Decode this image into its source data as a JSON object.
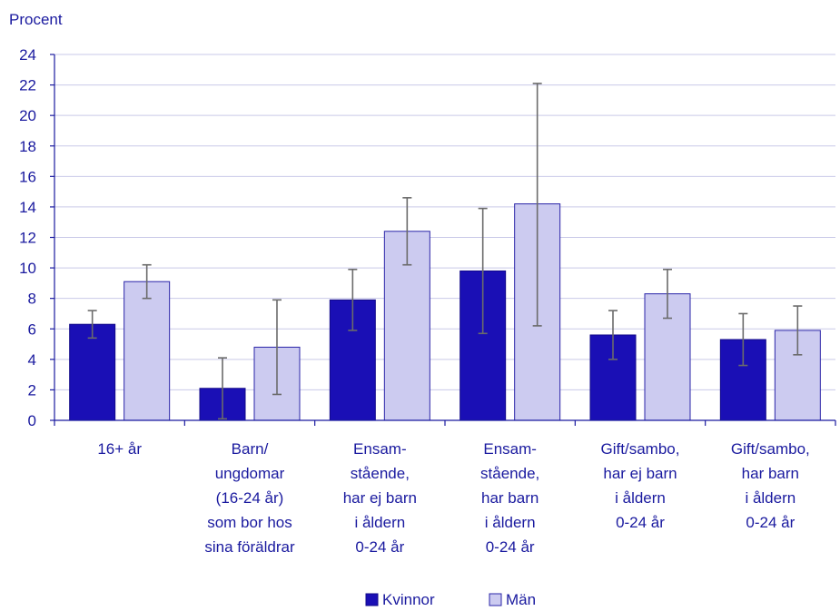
{
  "chart_data": {
    "type": "bar",
    "unit_label": "Procent",
    "ylim": [
      0,
      24
    ],
    "y_ticks": [
      "0",
      "2",
      "4",
      "6",
      "8",
      "10",
      "12",
      "14",
      "16",
      "18",
      "20",
      "22",
      "24"
    ],
    "grid": true,
    "legend_position": "bottom",
    "categories": [
      [
        "16+  år"
      ],
      [
        "Barn/",
        "ungdomar",
        "(16-24 år)",
        "som bor hos",
        "sina föräldrar"
      ],
      [
        "Ensam-",
        "stående,",
        "har ej barn",
        "i åldern",
        "0-24 år"
      ],
      [
        "Ensam-",
        "stående,",
        "har barn",
        "i åldern",
        "0-24 år"
      ],
      [
        "Gift/sambo,",
        "har ej barn",
        "i åldern",
        "0-24 år"
      ],
      [
        "Gift/sambo,",
        "har barn",
        "i åldern",
        "0-24 år"
      ]
    ],
    "series": [
      {
        "name": "Kvinnor",
        "color": "#1a0fb5",
        "values": [
          6.3,
          2.1,
          7.9,
          9.8,
          5.6,
          5.3
        ],
        "error_low": [
          5.4,
          0.1,
          5.9,
          5.7,
          4.0,
          3.6
        ],
        "error_high": [
          7.2,
          4.1,
          9.9,
          13.9,
          7.2,
          7.0
        ]
      },
      {
        "name": "Män",
        "color": "#cccbf0",
        "values": [
          9.1,
          4.8,
          12.4,
          14.2,
          8.3,
          5.9
        ],
        "error_low": [
          8.0,
          1.7,
          10.2,
          6.2,
          6.7,
          4.3
        ],
        "error_high": [
          10.2,
          7.9,
          14.6,
          22.1,
          9.9,
          7.5
        ]
      }
    ]
  }
}
